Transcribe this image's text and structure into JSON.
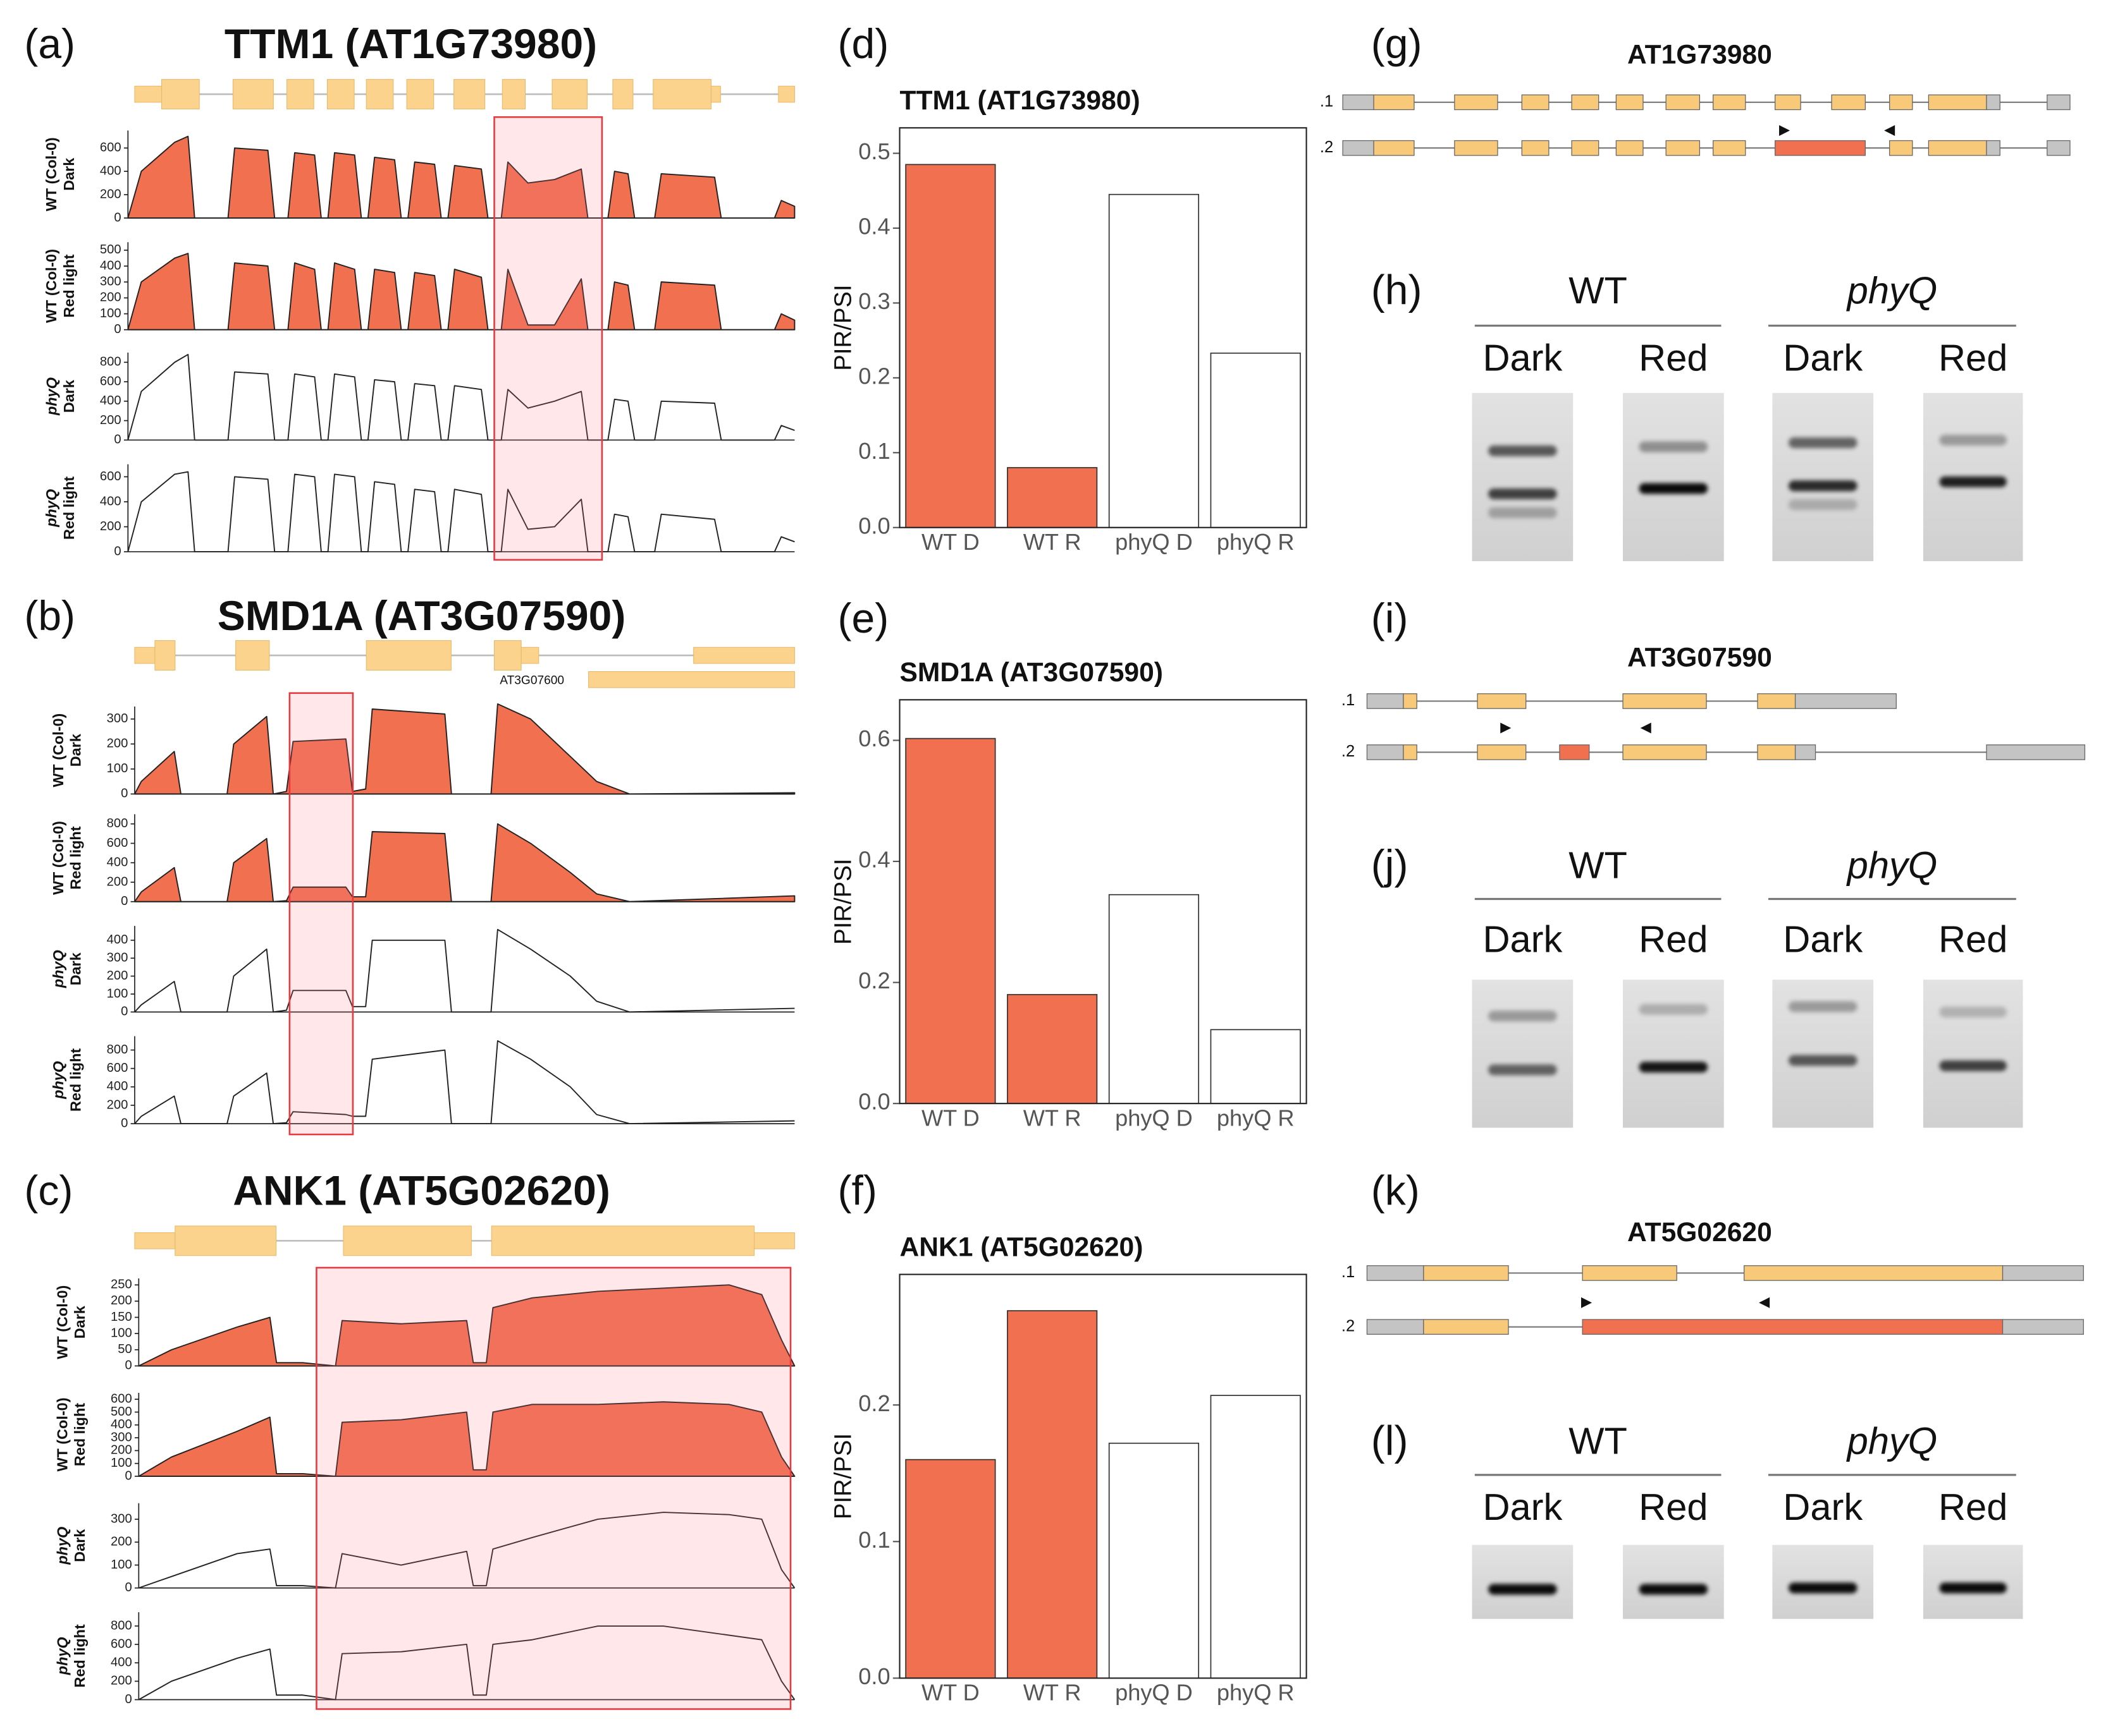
{
  "chart_data": [
    {
      "type": "coverage",
      "title": "TTM1 (AT1G73980)",
      "xlim": [
        0,
        100
      ],
      "x": [
        0,
        2,
        7,
        9,
        10,
        15,
        16,
        21,
        22,
        24,
        25,
        28,
        29,
        30,
        31,
        34,
        35,
        36,
        37,
        40,
        41,
        42,
        43,
        46,
        47,
        48,
        49,
        53,
        54,
        56,
        57,
        60,
        64,
        68,
        69,
        72,
        73,
        75,
        76,
        79,
        80,
        88,
        89,
        97,
        98,
        100
      ],
      "tracks": [
        {
          "label": [
            "WT (Col-0)",
            "Dark"
          ],
          "color": "#f07050",
          "filled": true,
          "ylim": [
            0,
            750
          ],
          "yticks": [
            0,
            200,
            400,
            600
          ],
          "values": [
            0,
            400,
            650,
            700,
            0,
            0,
            600,
            580,
            0,
            0,
            560,
            540,
            0,
            0,
            560,
            540,
            0,
            0,
            520,
            500,
            0,
            0,
            480,
            460,
            0,
            0,
            450,
            420,
            0,
            0,
            480,
            300,
            330,
            420,
            0,
            0,
            400,
            380,
            0,
            0,
            380,
            350,
            0,
            0,
            150,
            100
          ]
        },
        {
          "label": [
            "WT (Col-0)",
            "Red light"
          ],
          "color": "#f07050",
          "filled": true,
          "ylim": [
            0,
            550
          ],
          "yticks": [
            0,
            100,
            200,
            300,
            400,
            500
          ],
          "values": [
            0,
            300,
            450,
            480,
            0,
            0,
            420,
            400,
            0,
            0,
            420,
            380,
            0,
            0,
            420,
            380,
            0,
            0,
            380,
            360,
            0,
            0,
            360,
            340,
            0,
            0,
            380,
            330,
            0,
            0,
            380,
            30,
            30,
            320,
            0,
            0,
            300,
            280,
            0,
            0,
            300,
            280,
            0,
            0,
            100,
            60
          ]
        },
        {
          "label": [
            "phyQ",
            "Dark"
          ],
          "color": "#222222",
          "filled": false,
          "ylim": [
            0,
            900
          ],
          "yticks": [
            0,
            200,
            400,
            600,
            800
          ],
          "values": [
            0,
            500,
            800,
            880,
            0,
            0,
            700,
            680,
            0,
            0,
            680,
            650,
            0,
            0,
            680,
            650,
            0,
            0,
            620,
            600,
            0,
            0,
            580,
            560,
            0,
            0,
            560,
            520,
            0,
            0,
            520,
            330,
            400,
            500,
            0,
            0,
            420,
            400,
            0,
            0,
            400,
            380,
            0,
            0,
            150,
            100
          ]
        },
        {
          "label": [
            "phyQ",
            "Red light"
          ],
          "color": "#222222",
          "filled": false,
          "ylim": [
            0,
            700
          ],
          "yticks": [
            0,
            200,
            400,
            600
          ],
          "values": [
            0,
            400,
            620,
            640,
            0,
            0,
            600,
            580,
            0,
            0,
            620,
            600,
            0,
            0,
            620,
            600,
            0,
            0,
            560,
            540,
            0,
            0,
            500,
            480,
            0,
            0,
            500,
            460,
            0,
            0,
            500,
            180,
            200,
            420,
            0,
            0,
            300,
            280,
            0,
            0,
            300,
            260,
            0,
            0,
            120,
            80
          ]
        }
      ]
    },
    {
      "type": "coverage",
      "title": "SMD1A (AT3G07590)",
      "annotation": "AT3G07600",
      "xlim": [
        0,
        100
      ],
      "x": [
        0,
        1,
        6,
        7,
        14,
        15,
        20,
        21,
        23,
        24,
        32,
        33,
        35,
        36,
        47,
        48,
        54,
        55,
        60,
        66,
        70,
        75,
        100
      ],
      "tracks": [
        {
          "label": [
            "WT (Col-0)",
            "Dark"
          ],
          "color": "#f07050",
          "filled": true,
          "ylim": [
            0,
            350
          ],
          "yticks": [
            0,
            100,
            200,
            300
          ],
          "values": [
            0,
            50,
            170,
            0,
            0,
            200,
            310,
            0,
            10,
            210,
            220,
            10,
            20,
            340,
            320,
            0,
            0,
            360,
            300,
            150,
            50,
            0,
            5
          ]
        },
        {
          "label": [
            "WT (Col-0)",
            "Red light"
          ],
          "color": "#f07050",
          "filled": true,
          "ylim": [
            0,
            900
          ],
          "yticks": [
            0,
            200,
            400,
            600,
            800
          ],
          "values": [
            0,
            100,
            350,
            0,
            0,
            400,
            650,
            0,
            10,
            150,
            150,
            50,
            50,
            720,
            700,
            0,
            0,
            800,
            600,
            300,
            80,
            0,
            60
          ]
        },
        {
          "label": [
            "phyQ",
            "Dark"
          ],
          "color": "#222222",
          "filled": false,
          "ylim": [
            0,
            480
          ],
          "yticks": [
            0,
            100,
            200,
            300,
            400
          ],
          "values": [
            0,
            40,
            170,
            0,
            0,
            200,
            350,
            0,
            10,
            120,
            120,
            30,
            30,
            400,
            400,
            0,
            0,
            460,
            350,
            200,
            60,
            0,
            20
          ]
        },
        {
          "label": [
            "phyQ",
            "Red light"
          ],
          "color": "#222222",
          "filled": false,
          "ylim": [
            0,
            950
          ],
          "yticks": [
            0,
            200,
            400,
            600,
            800
          ],
          "values": [
            0,
            80,
            300,
            0,
            0,
            300,
            550,
            0,
            10,
            130,
            100,
            80,
            80,
            700,
            800,
            0,
            0,
            900,
            700,
            400,
            100,
            0,
            30
          ]
        }
      ]
    },
    {
      "type": "coverage",
      "title": "ANK1 (AT5G02620)",
      "xlim": [
        0,
        100
      ],
      "x": [
        0,
        5,
        15,
        20,
        21,
        25,
        30,
        31,
        40,
        50,
        51,
        53,
        54,
        60,
        70,
        80,
        90,
        95,
        98,
        100
      ],
      "tracks": [
        {
          "label": [
            "WT (Col-0)",
            "Dark"
          ],
          "color": "#f07050",
          "filled": true,
          "ylim": [
            0,
            270
          ],
          "yticks": [
            0,
            50,
            100,
            150,
            200,
            250
          ],
          "values": [
            0,
            50,
            120,
            150,
            10,
            10,
            0,
            140,
            130,
            140,
            10,
            10,
            180,
            210,
            230,
            240,
            250,
            220,
            80,
            0
          ]
        },
        {
          "label": [
            "WT (Col-0)",
            "Red light"
          ],
          "color": "#f07050",
          "filled": true,
          "ylim": [
            0,
            650
          ],
          "yticks": [
            0,
            100,
            200,
            300,
            400,
            500,
            600
          ],
          "values": [
            0,
            150,
            350,
            460,
            20,
            20,
            0,
            420,
            440,
            500,
            50,
            50,
            500,
            560,
            560,
            580,
            560,
            500,
            150,
            0
          ]
        },
        {
          "label": [
            "phyQ",
            "Dark"
          ],
          "color": "#222222",
          "filled": false,
          "ylim": [
            0,
            370
          ],
          "yticks": [
            0,
            100,
            200,
            300
          ],
          "values": [
            0,
            50,
            150,
            170,
            10,
            10,
            0,
            150,
            100,
            160,
            10,
            10,
            170,
            220,
            300,
            330,
            320,
            300,
            80,
            0
          ]
        },
        {
          "label": [
            "phyQ",
            "Red light"
          ],
          "color": "#222222",
          "filled": false,
          "ylim": [
            0,
            950
          ],
          "yticks": [
            0,
            200,
            400,
            600,
            800
          ],
          "values": [
            0,
            200,
            450,
            550,
            50,
            50,
            0,
            500,
            520,
            600,
            50,
            50,
            600,
            650,
            800,
            800,
            700,
            650,
            200,
            0
          ]
        }
      ]
    },
    {
      "type": "bar",
      "title": "TTM1 (AT1G73980)",
      "ylabel": "PIR/PSI",
      "categories": [
        "WT D",
        "WT R",
        "phyQ D",
        "phyQ R"
      ],
      "values": [
        0.485,
        0.08,
        0.445,
        0.233
      ],
      "colors": [
        "#f07050",
        "#f07050",
        "#ffffff",
        "#ffffff"
      ],
      "ylim": [
        0,
        0.534
      ],
      "yticks": [
        {
          "value": 0,
          "label": "0.0"
        },
        0.1,
        0.2,
        0.3,
        0.4,
        0.5
      ]
    },
    {
      "type": "bar",
      "title": "SMD1A (AT3G07590)",
      "ylabel": "PIR/PSI",
      "categories": [
        "WT D",
        "WT R",
        "phyQ D",
        "phyQ R"
      ],
      "values": [
        0.603,
        0.18,
        0.345,
        0.122
      ],
      "colors": [
        "#f07050",
        "#f07050",
        "#ffffff",
        "#ffffff"
      ],
      "ylim": [
        0,
        0.667
      ],
      "yticks": [
        {
          "value": 0,
          "label": "0.0"
        },
        0.2,
        0.4,
        0.6
      ]
    },
    {
      "type": "bar",
      "title": "ANK1 (AT5G02620)",
      "ylabel": "PIR/PSI",
      "categories": [
        "WT D",
        "WT R",
        "phyQ D",
        "phyQ R"
      ],
      "values": [
        0.16,
        0.269,
        0.172,
        0.207
      ],
      "colors": [
        "#f07050",
        "#f07050",
        "#ffffff",
        "#ffffff"
      ],
      "ylim": [
        0,
        0.2956
      ],
      "yticks": [
        {
          "value": 0,
          "label": "0.0"
        },
        0.1,
        0.2
      ]
    }
  ],
  "panel_labels": [
    "(a)",
    "(b)",
    "(c)",
    "(d)",
    "(e)",
    "(f)",
    "(g)",
    "(h)",
    "(i)",
    "(j)",
    "(k)",
    "(l)"
  ],
  "gene_models": [
    {
      "title": "AT1G73980",
      "isoforms": [
        ".1",
        ".2"
      ]
    },
    {
      "title": "AT3G07590",
      "isoforms": [
        ".1",
        ".2"
      ]
    },
    {
      "title": "AT5G02620",
      "isoforms": [
        ".1",
        ".2"
      ]
    }
  ],
  "gels": [
    {
      "groups": [
        "WT",
        "phyQ"
      ],
      "lanes": [
        "Dark",
        "Red",
        "Dark",
        "Red"
      ]
    },
    {
      "groups": [
        "WT",
        "phyQ"
      ],
      "lanes": [
        "Dark",
        "Red",
        "Dark",
        "Red"
      ]
    },
    {
      "groups": [
        "WT",
        "phyQ"
      ],
      "lanes": [
        "Dark",
        "Red",
        "Dark",
        "Red"
      ]
    }
  ]
}
